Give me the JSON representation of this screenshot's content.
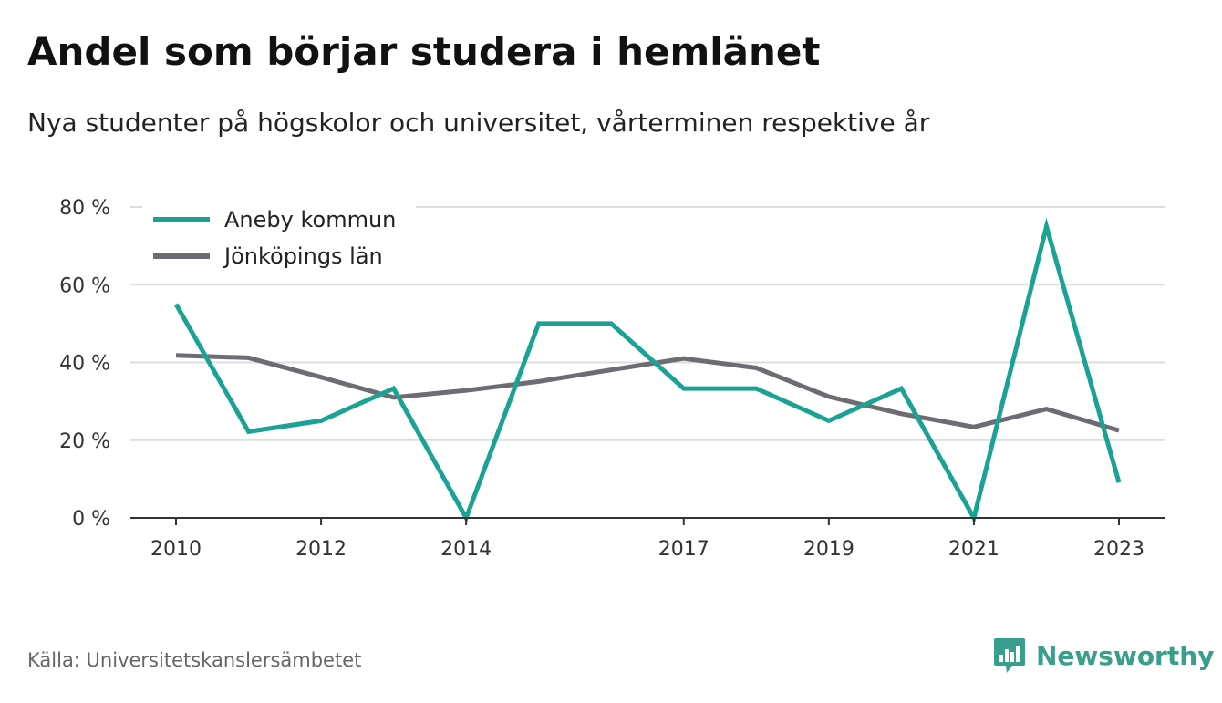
{
  "header": {
    "title": "Andel som börjar studera i hemlänet",
    "subtitle": "Nya studenter på högskolor och universitet, vårterminen respektive år"
  },
  "footer": {
    "source": "Källa: Universitetskanslersämbetet",
    "brand": "Newsworthy",
    "brand_icon": "bar-chart-speech-bubble-icon"
  },
  "colors": {
    "aneby": "#1aa395",
    "jonkoping": "#6e6c72",
    "grid": "#dddddd",
    "axis": "#333333",
    "brand": "#3a9e8c"
  },
  "chart_data": {
    "type": "line",
    "title": "Andel som börjar studera i hemlänet",
    "subtitle": "Nya studenter på högskolor och universitet, vårterminen respektive år",
    "x": [
      2010,
      2011,
      2012,
      2013,
      2014,
      2015,
      2016,
      2017,
      2018,
      2019,
      2020,
      2021,
      2022,
      2023
    ],
    "x_tick_labels": [
      "2010",
      "2012",
      "2014",
      "2017",
      "2019",
      "2021",
      "2023"
    ],
    "x_ticks": [
      2010,
      2012,
      2014,
      2017,
      2019,
      2021,
      2023
    ],
    "y_ticks": [
      0,
      20,
      40,
      60,
      80
    ],
    "y_tick_labels": [
      "0 %",
      "20 %",
      "40 %",
      "60 %",
      "80 %"
    ],
    "ylim": [
      0,
      80
    ],
    "grid": true,
    "legend_position": "top-left",
    "series": [
      {
        "name": "Aneby kommun",
        "color": "#1aa395",
        "values": [
          55,
          22.2,
          25,
          33.3,
          0,
          50,
          50,
          33.3,
          33.3,
          25,
          33.3,
          0,
          75,
          9.1
        ]
      },
      {
        "name": "Jönköpings län",
        "color": "#6e6c72",
        "values": [
          41.8,
          41.2,
          36.2,
          31,
          32.8,
          35.1,
          38.1,
          41,
          38.6,
          31.2,
          26.8,
          23.4,
          28,
          22.5
        ]
      }
    ],
    "source": "Källa: Universitetskanslersämbetet"
  }
}
